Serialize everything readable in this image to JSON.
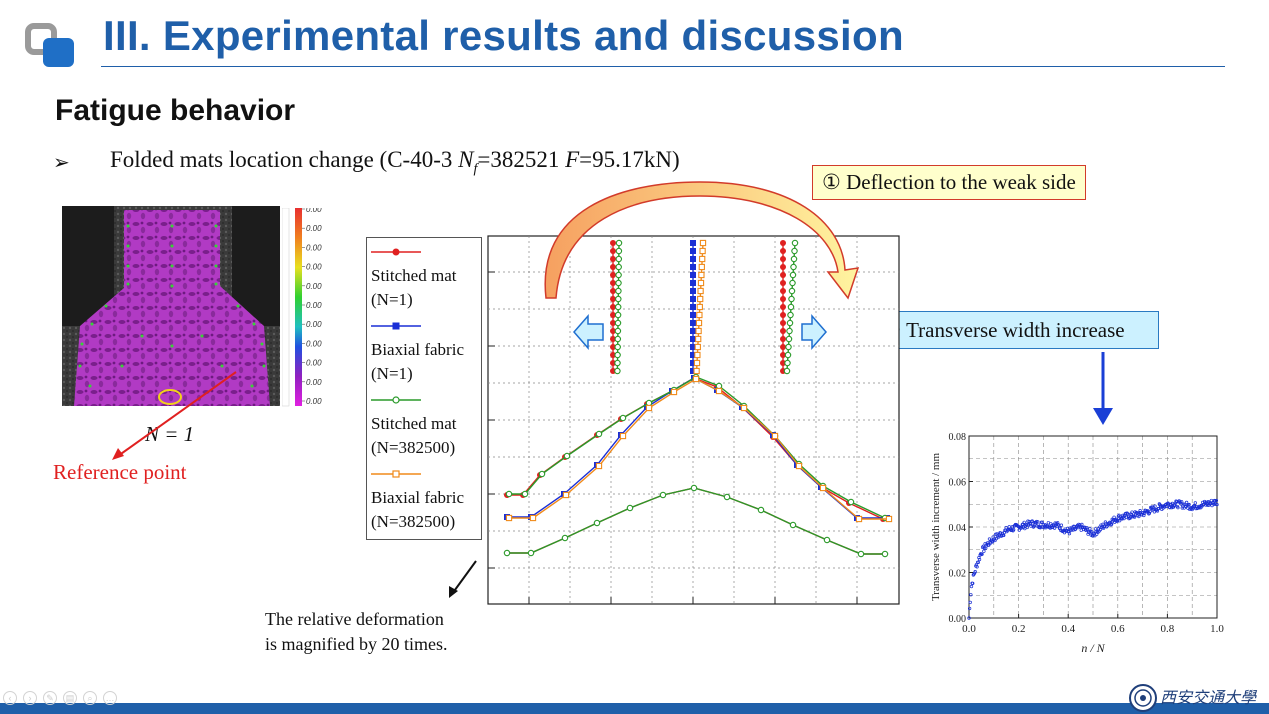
{
  "slide": {
    "title": "III. Experimental results and discussion",
    "subtitle": "Fatigue behavior",
    "bullet_symbol": "➢",
    "bullet_text_parts": [
      "Folded mats location change (C-40-3 ",
      "N",
      "f",
      "=382521 ",
      "F",
      "=95.17kN)"
    ],
    "accent_color": "#1f5fa9"
  },
  "callouts": {
    "deflection": "① Deflection to the weak side",
    "transverse": "② Transverse width increase"
  },
  "dic_image": {
    "scale_values": [
      "0.00",
      "0.00",
      "0.00",
      "0.00",
      "0.00",
      "0.00",
      "0.00",
      "0.00",
      "0.00",
      "0.00",
      "0.00"
    ],
    "n_label": "N = 1",
    "reference_label": "Reference point"
  },
  "legend": {
    "entries": [
      {
        "label_line1": "Stitched mat",
        "label_line2": "(N=1)",
        "color": "#e02020",
        "marker": "filled-circle"
      },
      {
        "label_line1": "Biaxial fabric",
        "label_line2": "(N=1)",
        "color": "#1a2fd6",
        "marker": "filled-square"
      },
      {
        "label_line1": "Stitched mat",
        "label_line2": "(N=382500)",
        "color": "#2a9a2a",
        "marker": "open-circle"
      },
      {
        "label_line1": "Biaxial fabric",
        "label_line2": "(N=382500)",
        "color": "#f08a1a",
        "marker": "open-square"
      }
    ]
  },
  "note": {
    "line1": "The relative deformation",
    "line2": "is magnified by 20 times."
  },
  "chart_data": {
    "type": "scatter",
    "xlabel": "n / N",
    "ylabel": "Transverse width increment  / mm",
    "xlim": [
      0.0,
      1.0
    ],
    "ylim": [
      0.0,
      0.08
    ],
    "xticks": [
      "0.0",
      "0.2",
      "0.4",
      "0.6",
      "0.8",
      "1.0"
    ],
    "yticks": [
      "0.00",
      "0.02",
      "0.04",
      "0.06",
      "0.08"
    ],
    "grid": true,
    "series": [
      {
        "color": "#1a2fd6",
        "x": [
          0.0,
          0.005,
          0.01,
          0.02,
          0.03,
          0.04,
          0.05,
          0.07,
          0.1,
          0.13,
          0.16,
          0.2,
          0.25,
          0.3,
          0.35,
          0.4,
          0.45,
          0.5,
          0.55,
          0.6,
          0.65,
          0.7,
          0.75,
          0.8,
          0.85,
          0.9,
          0.95,
          1.0
        ],
        "y": [
          0.0,
          0.008,
          0.014,
          0.019,
          0.023,
          0.026,
          0.029,
          0.032,
          0.035,
          0.037,
          0.039,
          0.04,
          0.0415,
          0.041,
          0.041,
          0.038,
          0.04,
          0.037,
          0.041,
          0.044,
          0.045,
          0.046,
          0.048,
          0.05,
          0.05,
          0.049,
          0.05,
          0.051
        ]
      }
    ]
  },
  "footer": {
    "university_name": "西安交通大學",
    "nav_icons": [
      "prev-icon",
      "next-icon",
      "pen-icon",
      "slides-icon",
      "zoom-icon",
      "more-icon"
    ]
  }
}
